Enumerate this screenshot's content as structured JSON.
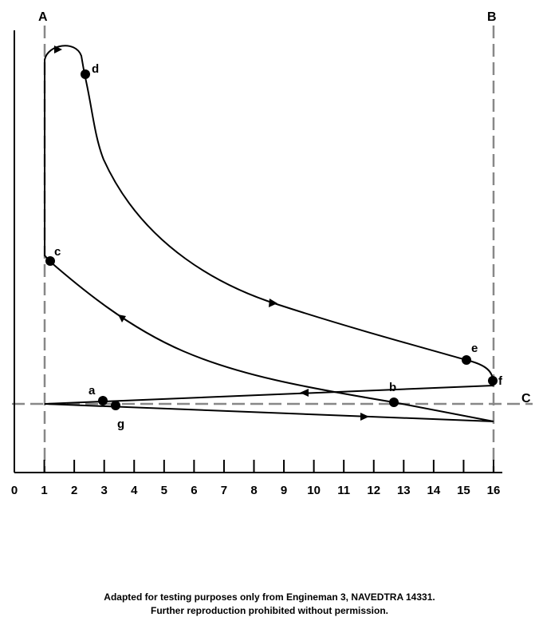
{
  "lines": {
    "left": "A",
    "right": "B",
    "baseline": "C"
  },
  "x_axis": {
    "ticks": [
      "0",
      "1",
      "2",
      "3",
      "4",
      "5",
      "6",
      "7",
      "8",
      "9",
      "10",
      "11",
      "12",
      "13",
      "14",
      "15",
      "16"
    ]
  },
  "points": {
    "a": "a",
    "b": "b",
    "c": "c",
    "d": "d",
    "e": "e",
    "f": "f",
    "g": "g"
  },
  "footer": {
    "line1": "Adapted for testing purposes only from Engineman 3, NAVEDTRA 14331.",
    "line2": "Further reproduction prohibited without permission."
  }
}
